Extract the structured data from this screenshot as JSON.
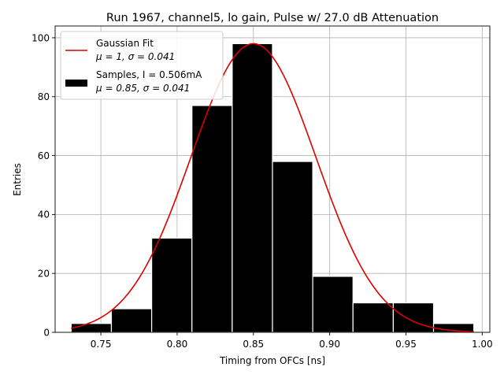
{
  "chart_data": {
    "type": "bar",
    "title": "Run 1967, channel5, lo gain, Pulse w/ 27.0 dB Attenuation",
    "xlabel": "Timing from OFCs [ns]",
    "ylabel": "Entries",
    "xlim": [
      0.72,
      1.005
    ],
    "ylim": [
      0,
      104
    ],
    "xticks": [
      0.75,
      0.8,
      0.85,
      0.9,
      0.95,
      1.0
    ],
    "xtick_labels": [
      "0.75",
      "0.80",
      "0.85",
      "0.90",
      "0.95",
      "1.00"
    ],
    "yticks": [
      0,
      20,
      40,
      60,
      80,
      100
    ],
    "ytick_labels": [
      "0",
      "20",
      "40",
      "60",
      "80",
      "100"
    ],
    "grid": true,
    "legend_position": "top-left",
    "histogram": {
      "name": "Samples, I = 0.506mA",
      "stats": "μ = 0.85, σ = 0.041",
      "color": "#000000",
      "edgecolor": "#ffffff",
      "bin_edges": [
        0.7305,
        0.7569,
        0.7833,
        0.8097,
        0.8361,
        0.8625,
        0.8889,
        0.9153,
        0.9417,
        0.9681,
        0.9945
      ],
      "counts": [
        3,
        8,
        32,
        77,
        98,
        58,
        19,
        10,
        10,
        3
      ]
    },
    "fit": {
      "name": "Gaussian Fit",
      "stats": "μ = 1, σ = 0.041",
      "color": "#dd0000",
      "mu": 0.85,
      "sigma": 0.041,
      "amplitude": 98,
      "x_range": [
        0.7305,
        0.9945
      ]
    }
  }
}
